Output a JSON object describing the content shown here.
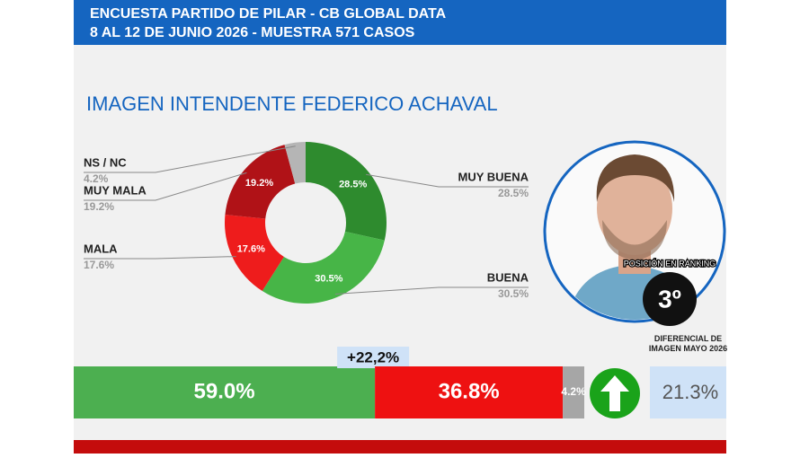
{
  "header": {
    "line1": "ENCUESTA PARTIDO DE PILAR - CB GLOBAL DATA",
    "line2": "8 AL 12 DE JUNIO 2026 - MUESTRA 571 CASOS"
  },
  "chart_data": [
    {
      "type": "pie",
      "donut": true,
      "title": "IMAGEN INTENDENTE  FEDERICO ACHAVAL",
      "categories": [
        "MUY BUENA",
        "BUENA",
        "MALA",
        "MUY MALA",
        "NS / NC"
      ],
      "values": [
        28.5,
        30.5,
        17.6,
        19.2,
        4.2
      ],
      "value_labels": [
        "28.5%",
        "30.5%",
        "17.6%",
        "19.2%",
        "4.2%"
      ],
      "colors": [
        "#2e8b2e",
        "#47b547",
        "#ee1c1c",
        "#b01217",
        "#b5b5b5"
      ]
    },
    {
      "type": "stacked-bar",
      "orientation": "horizontal",
      "xlim": [
        0,
        100
      ],
      "series": [
        {
          "color": "#4caf50",
          "values": [
            59.0
          ],
          "value_labels": [
            "59.0%"
          ]
        },
        {
          "color": "#ee1111",
          "values": [
            36.8
          ],
          "value_labels": [
            "36.8%"
          ]
        },
        {
          "color": "#a6a6a6",
          "values": [
            4.2
          ],
          "value_labels": [
            "4.2%"
          ]
        }
      ],
      "annotation": "+22,2%"
    }
  ],
  "diferencial": {
    "label": "DIFERENCIAL DE IMAGEN MAYO 2026",
    "value": "21.3%"
  },
  "ranking": {
    "label": "POSICIÓN EN RANKING",
    "value": "3º"
  }
}
